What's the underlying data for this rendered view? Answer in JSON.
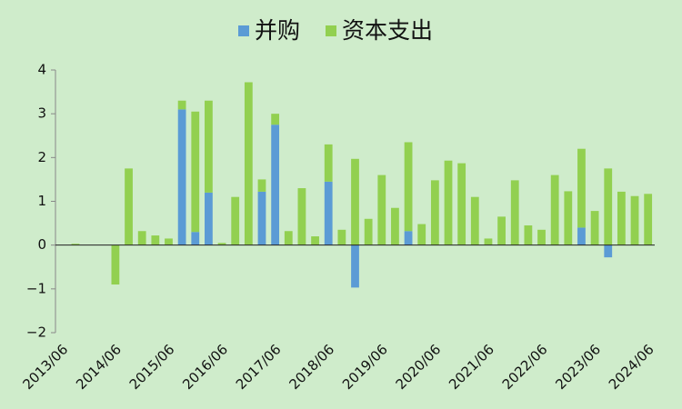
{
  "chart_data": {
    "type": "stacked_bar",
    "categories": [
      "2013/06",
      null,
      null,
      null,
      "2014/06",
      null,
      null,
      null,
      "2015/06",
      null,
      null,
      null,
      "2016/06",
      null,
      null,
      null,
      "2017/06",
      null,
      null,
      null,
      "2018/06",
      null,
      null,
      null,
      "2019/06",
      null,
      null,
      null,
      "2020/06",
      null,
      null,
      null,
      "2021/06",
      null,
      null,
      null,
      "2022/06",
      null,
      null,
      null,
      "2023/06",
      null,
      null,
      null,
      "2024/06"
    ],
    "series": [
      {
        "name": "并购",
        "color": "#5b9bd5",
        "values": [
          0,
          0,
          0,
          0,
          0,
          0,
          0,
          0,
          0,
          3.1,
          0.3,
          1.2,
          0,
          0,
          0,
          1.22,
          2.75,
          0,
          0,
          0,
          1.45,
          0,
          -0.97,
          0,
          0,
          0,
          0.32,
          0,
          0,
          0,
          0,
          0,
          0,
          0,
          0,
          0,
          0,
          0,
          0,
          0.4,
          0,
          -0.28,
          0,
          0,
          0
        ]
      },
      {
        "name": "资本支出",
        "color": "#92d050",
        "values": [
          0,
          0.03,
          0,
          0,
          -0.9,
          1.75,
          0.32,
          0.22,
          0.15,
          0.2,
          2.75,
          2.1,
          0.05,
          1.1,
          3.72,
          0.28,
          0.25,
          0.32,
          1.3,
          0.2,
          0.85,
          0.35,
          1.97,
          0.6,
          1.6,
          0.85,
          2.03,
          0.48,
          1.48,
          1.93,
          1.87,
          1.1,
          0.15,
          0.65,
          1.48,
          0.45,
          0.35,
          1.6,
          1.23,
          1.8,
          0.78,
          1.75,
          1.22,
          1.12,
          1.17
        ]
      }
    ],
    "ylim": [
      -2,
      4
    ],
    "yticks": [
      {
        "value": -2,
        "label": "−2"
      },
      {
        "value": -1,
        "label": "−1"
      },
      0,
      1,
      2,
      3,
      4
    ],
    "legend": "top"
  }
}
